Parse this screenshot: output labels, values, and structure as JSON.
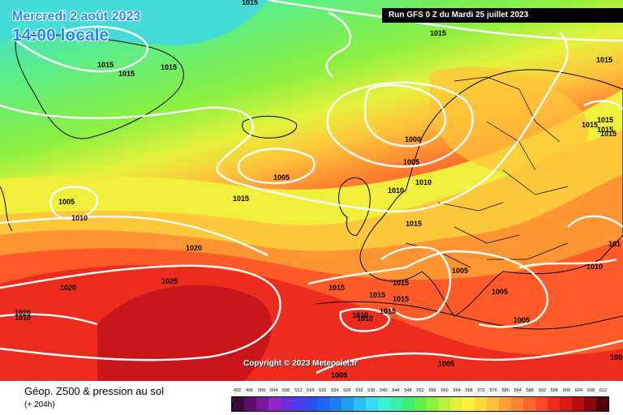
{
  "map": {
    "date_line": "Mercredi 2 août 2023",
    "time_line": "14:00 locale",
    "run_info": "Run GFS 0 Z du Mardi 25 juillet 2023",
    "copyright": "Copyright © 2023 Meteociel.fr",
    "pressure_labels": [
      {
        "id": "p1",
        "text": "1015"
      },
      {
        "id": "p2",
        "text": "1015"
      },
      {
        "id": "p3",
        "text": "1015"
      },
      {
        "id": "p4",
        "text": "1015"
      },
      {
        "id": "p5",
        "text": "1015"
      },
      {
        "id": "p6",
        "text": "1015"
      },
      {
        "id": "p7",
        "text": "1000"
      },
      {
        "id": "p8",
        "text": "1005"
      },
      {
        "id": "p9",
        "text": "1005"
      },
      {
        "id": "p10",
        "text": "1005"
      },
      {
        "id": "p11",
        "text": "1010"
      },
      {
        "id": "p12",
        "text": "1015"
      },
      {
        "id": "p13",
        "text": "1010"
      },
      {
        "id": "p14",
        "text": "1010"
      },
      {
        "id": "p15",
        "text": "1015"
      },
      {
        "id": "p16",
        "text": "1020"
      },
      {
        "id": "p17",
        "text": "1025"
      },
      {
        "id": "p18",
        "text": "1020"
      },
      {
        "id": "p19",
        "text": "1020"
      },
      {
        "id": "p20",
        "text": "1015"
      },
      {
        "id": "p21",
        "text": "1015"
      },
      {
        "id": "p22",
        "text": "1015"
      },
      {
        "id": "p23",
        "text": "1015"
      },
      {
        "id": "p24",
        "text": "1015"
      },
      {
        "id": "p25",
        "text": "1010"
      },
      {
        "id": "p26",
        "text": "1010"
      },
      {
        "id": "p27",
        "text": "1005"
      },
      {
        "id": "p28",
        "text": "1005"
      },
      {
        "id": "p29",
        "text": "1010"
      },
      {
        "id": "p30",
        "text": "1005"
      },
      {
        "id": "p31",
        "text": "1005"
      },
      {
        "id": "p32",
        "text": "1005"
      },
      {
        "id": "p33",
        "text": "1005"
      },
      {
        "id": "p34",
        "text": "1015"
      },
      {
        "id": "p35",
        "text": "1015"
      },
      {
        "id": "p36",
        "text": "1015"
      },
      {
        "id": "p37",
        "text": "1010"
      },
      {
        "id": "p38",
        "text": "1015"
      },
      {
        "id": "p39",
        "text": "101"
      }
    ]
  },
  "footer": {
    "title": "Géop. Z500 & pression au sol",
    "subtitle": "(+ 204h)"
  },
  "legend": {
    "ticks": [
      "492",
      "496",
      "500",
      "504",
      "508",
      "512",
      "516",
      "520",
      "524",
      "528",
      "532",
      "536",
      "540",
      "544",
      "548",
      "552",
      "556",
      "560",
      "564",
      "568",
      "572",
      "576",
      "580",
      "584",
      "588",
      "592",
      "596",
      "600",
      "604",
      "608",
      "612"
    ],
    "colors": [
      "#3a0a3a",
      "#5c0f6e",
      "#7a1a9a",
      "#8f28c8",
      "#6d2ee0",
      "#4a3ef0",
      "#2f4cf5",
      "#1e66f5",
      "#1a82f0",
      "#1ea0f0",
      "#2ac0f0",
      "#38dcf0",
      "#3af0d6",
      "#38f0a8",
      "#3cf070",
      "#62f04a",
      "#8cf03c",
      "#b8f03c",
      "#e2f03c",
      "#fff03a",
      "#ffd83a",
      "#ffbe38",
      "#ffa234",
      "#ff8530",
      "#ff682c",
      "#ff4a26",
      "#f02a20",
      "#d81a18",
      "#b80c12",
      "#8a060c",
      "#50020a"
    ]
  }
}
